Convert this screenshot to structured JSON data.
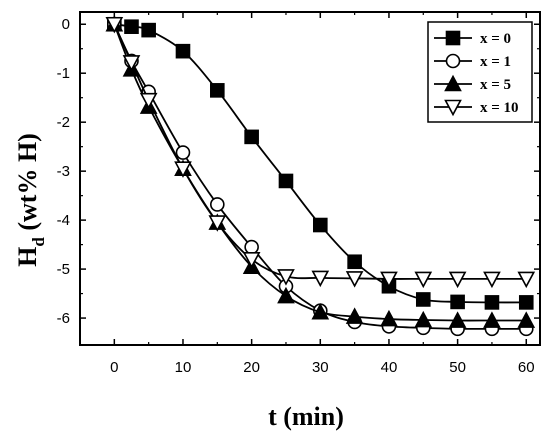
{
  "chart_data": {
    "type": "line",
    "xlabel": "t (min)",
    "ylabel_main": "H",
    "ylabel_sub": "d",
    "ylabel_rest": " (wt% H)",
    "xlim": [
      -5,
      62
    ],
    "ylim": [
      -6.55,
      0.25
    ],
    "xticks": [
      0,
      10,
      20,
      30,
      40,
      50,
      60
    ],
    "yticks": [
      0,
      -1,
      -2,
      -3,
      -4,
      -5,
      -6
    ],
    "legend_position": "top-right",
    "series": [
      {
        "name": "x = 0",
        "marker": "square-filled",
        "x": [
          0,
          2.5,
          5,
          10,
          15,
          20,
          25,
          30,
          35,
          40,
          45,
          50,
          55,
          60
        ],
        "y": [
          0,
          -0.05,
          -0.12,
          -0.55,
          -1.35,
          -2.3,
          -3.2,
          -4.1,
          -4.85,
          -5.35,
          -5.62,
          -5.67,
          -5.68,
          -5.68
        ]
      },
      {
        "name": "x = 1",
        "marker": "circle-open",
        "x": [
          0,
          2.5,
          5,
          10,
          15,
          20,
          25,
          30,
          35,
          40,
          45,
          50,
          55,
          60
        ],
        "y": [
          0,
          -0.75,
          -1.38,
          -2.62,
          -3.68,
          -4.55,
          -5.35,
          -5.85,
          -6.08,
          -6.17,
          -6.2,
          -6.22,
          -6.22,
          -6.22
        ]
      },
      {
        "name": "x = 5",
        "marker": "triangle-up-filled",
        "x": [
          0,
          2.5,
          5,
          10,
          15,
          20,
          25,
          30,
          35,
          40,
          45,
          50,
          55,
          60
        ],
        "y": [
          0,
          -0.92,
          -1.68,
          -2.95,
          -4.05,
          -4.95,
          -5.55,
          -5.88,
          -5.97,
          -6.02,
          -6.04,
          -6.05,
          -6.05,
          -6.05
        ]
      },
      {
        "name": "x = 10",
        "marker": "triangle-down-open",
        "x": [
          0,
          2.5,
          5,
          10,
          15,
          20,
          25,
          30,
          35,
          40,
          45,
          50,
          55,
          60
        ],
        "y": [
          0,
          -0.78,
          -1.55,
          -2.95,
          -4.05,
          -4.8,
          -5.15,
          -5.18,
          -5.19,
          -5.2,
          -5.2,
          -5.2,
          -5.2,
          -5.2
        ]
      }
    ]
  }
}
